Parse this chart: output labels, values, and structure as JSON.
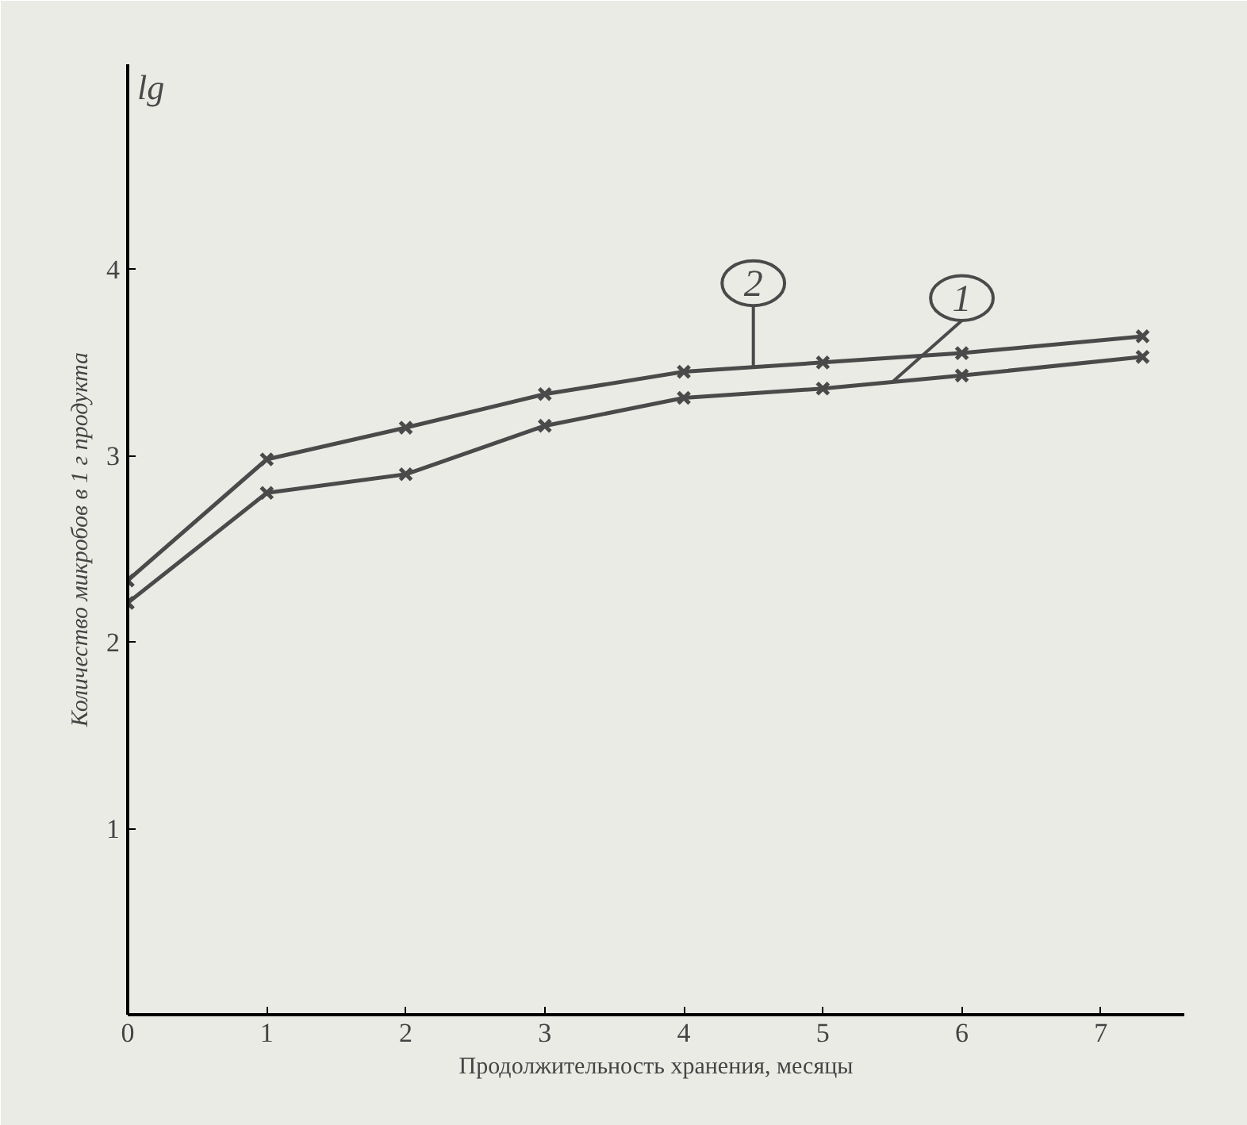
{
  "chart_data": {
    "type": "line",
    "xlabel": "Продолжительность хранения, месяцы",
    "ylabel": "Количество микробов в 1 г продукта",
    "annotations": [
      "lg"
    ],
    "xlim": [
      0,
      7.6
    ],
    "ylim": [
      0,
      5.1
    ],
    "xticks": [
      0,
      1,
      2,
      3,
      4,
      5,
      6,
      7
    ],
    "yticks": [
      1,
      2,
      3,
      4
    ],
    "marker": "cross",
    "grid": false,
    "series": [
      {
        "name": "1",
        "color": "#4a4a4a",
        "x": [
          0,
          1,
          2,
          3,
          4,
          5,
          6,
          7.3
        ],
        "values": [
          2.21,
          2.8,
          2.9,
          3.16,
          3.31,
          3.36,
          3.43,
          3.53
        ]
      },
      {
        "name": "2",
        "color": "#4a4a4a",
        "x": [
          0,
          1,
          2,
          3,
          4,
          5,
          6,
          7.3
        ],
        "values": [
          2.33,
          2.98,
          3.15,
          3.33,
          3.45,
          3.5,
          3.55,
          3.64
        ]
      }
    ]
  }
}
